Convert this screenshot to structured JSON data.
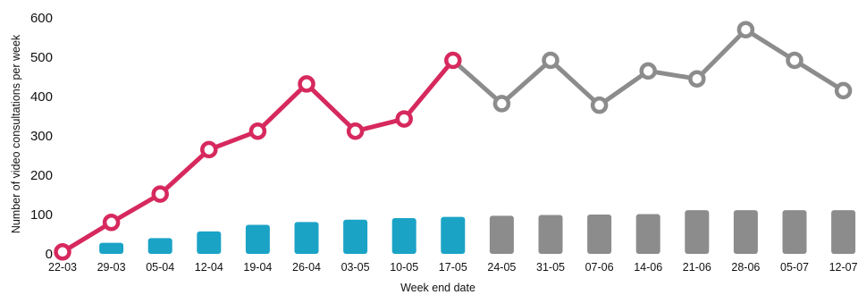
{
  "chart_data": {
    "type": "line",
    "title": "",
    "xlabel": "Week end date",
    "ylabel": "Number of video consultations per week",
    "ylim": [
      0,
      600
    ],
    "yticks": [
      0,
      100,
      200,
      300,
      400,
      500,
      600
    ],
    "grid": false,
    "categories": [
      "22-03",
      "29-03",
      "05-04",
      "12-04",
      "19-04",
      "26-04",
      "03-05",
      "10-05",
      "17-05",
      "24-05",
      "31-05",
      "07-06",
      "14-06",
      "21-06",
      "28-06",
      "05-07",
      "12-07"
    ],
    "series": [
      {
        "kind": "line",
        "values": [
          5,
          80,
          152,
          265,
          312,
          432,
          312,
          343,
          492,
          382,
          492,
          378,
          465,
          445,
          570,
          492,
          415
        ],
        "colors": [
          "#d6295e",
          "#d6295e",
          "#d6295e",
          "#d6295e",
          "#d6295e",
          "#d6295e",
          "#d6295e",
          "#d6295e",
          "#d6295e",
          "#8c8c8c",
          "#8c8c8c",
          "#8c8c8c",
          "#8c8c8c",
          "#8c8c8c",
          "#8c8c8c",
          "#8c8c8c",
          "#8c8c8c"
        ]
      },
      {
        "kind": "bar",
        "values": [
          0,
          28,
          40,
          57,
          74,
          81,
          87,
          91,
          94,
          97,
          99,
          100,
          101,
          111,
          111,
          111,
          111
        ],
        "colors": [
          "#1ba3c6",
          "#1ba3c6",
          "#1ba3c6",
          "#1ba3c6",
          "#1ba3c6",
          "#1ba3c6",
          "#1ba3c6",
          "#1ba3c6",
          "#1ba3c6",
          "#8c8c8c",
          "#8c8c8c",
          "#8c8c8c",
          "#8c8c8c",
          "#8c8c8c",
          "#8c8c8c",
          "#8c8c8c",
          "#8c8c8c"
        ]
      }
    ]
  }
}
